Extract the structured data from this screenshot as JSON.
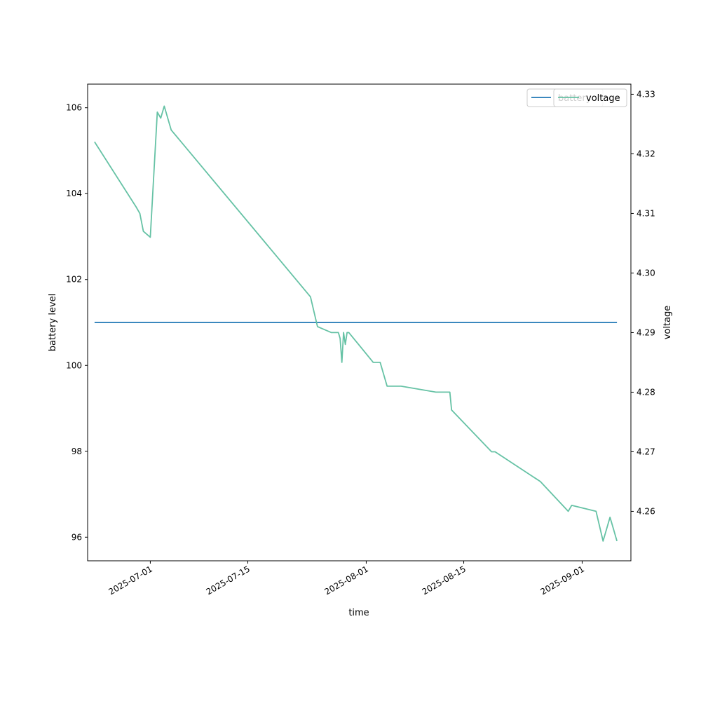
{
  "chart_data": {
    "type": "line",
    "xlabel": "time",
    "ylabel_left": "battery level",
    "ylabel_right": "voltage",
    "x_range": [
      "2025-06-22",
      "2025-09-08"
    ],
    "ylim_left": [
      95.45,
      106.55
    ],
    "ylim_right": [
      4.2517,
      4.3317
    ],
    "x_ticks": [
      "2025-07-01",
      "2025-07-15",
      "2025-08-01",
      "2025-08-15",
      "2025-09-01"
    ],
    "y_ticks_left": [
      96,
      98,
      100,
      102,
      104,
      106
    ],
    "y_ticks_right": [
      "4.26",
      "4.27",
      "4.28",
      "4.29",
      "4.30",
      "4.31",
      "4.32",
      "4.33"
    ],
    "grid": false,
    "legend_placement": "top-right",
    "series": [
      {
        "name": "battery",
        "axis": "left",
        "color": "#1f77b4",
        "x": [
          "2025-06-23",
          "2025-09-06"
        ],
        "y": [
          101,
          101
        ]
      },
      {
        "name": "voltage",
        "axis": "right",
        "color": "#66c2a5",
        "x": [
          "2025-06-23",
          "2025-06-29",
          "2025-06-29T12:00",
          "2025-06-30",
          "2025-07-01",
          "2025-07-02",
          "2025-07-02T12:00",
          "2025-07-03",
          "2025-07-04",
          "2025-07-24",
          "2025-07-25",
          "2025-07-27",
          "2025-07-28",
          "2025-07-28T06:00",
          "2025-07-28T12:00",
          "2025-07-28T18:00",
          "2025-07-29",
          "2025-07-29T06:00",
          "2025-07-29T12:00",
          "2025-08-02",
          "2025-08-03",
          "2025-08-04",
          "2025-08-06",
          "2025-08-11",
          "2025-08-13",
          "2025-08-13T06:00",
          "2025-08-19",
          "2025-08-19T12:00",
          "2025-08-26",
          "2025-08-30",
          "2025-08-30T12:00",
          "2025-09-03",
          "2025-09-04",
          "2025-09-05",
          "2025-09-05T12:00",
          "2025-09-06"
        ],
        "y": [
          4.322,
          4.311,
          4.31,
          4.307,
          4.306,
          4.327,
          4.326,
          4.328,
          4.324,
          4.296,
          4.291,
          4.29,
          4.29,
          4.289,
          4.285,
          4.29,
          4.288,
          4.29,
          4.29,
          4.285,
          4.285,
          4.281,
          4.281,
          4.28,
          4.28,
          4.277,
          4.27,
          4.27,
          4.265,
          4.26,
          4.261,
          4.26,
          4.255,
          4.259,
          4.257,
          4.255
        ]
      }
    ]
  }
}
